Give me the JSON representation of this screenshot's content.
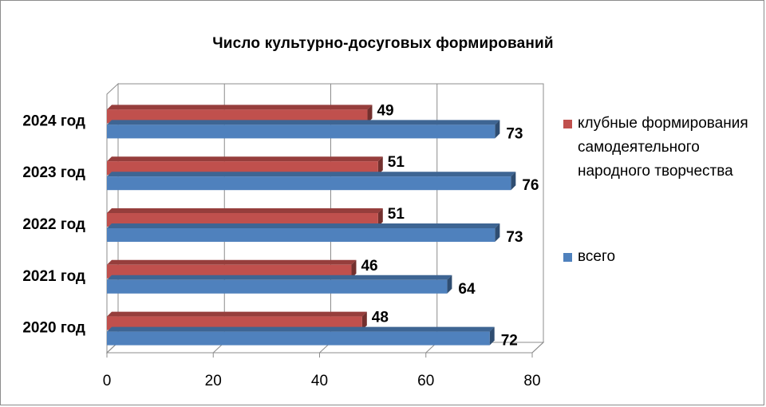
{
  "chart_data": {
    "type": "bar",
    "orientation": "horizontal",
    "title": "Число культурно-досуговых формирований",
    "categories": [
      "2020 год",
      "2021 год",
      "2022 год",
      "2023 год",
      "2024 год"
    ],
    "series": [
      {
        "name": "клубные формирования самодеятельного народного творчества",
        "values": [
          48,
          46,
          51,
          51,
          49
        ],
        "color": "#C0504D"
      },
      {
        "name": "всего",
        "values": [
          72,
          64,
          73,
          76,
          73
        ],
        "color": "#4F81BD"
      }
    ],
    "xlim": [
      0,
      80
    ],
    "xticks": [
      "0",
      "20",
      "40",
      "60",
      "80"
    ],
    "grid": true,
    "legend": "right",
    "data_labels": true,
    "style": "3d"
  }
}
